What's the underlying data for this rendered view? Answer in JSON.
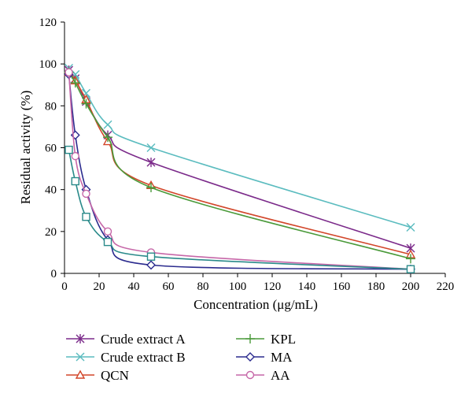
{
  "chart_data": {
    "type": "line",
    "xlabel": "Concentration (μg/mL)",
    "ylabel": "Residual activity (%)",
    "xlim": [
      0,
      220
    ],
    "ylim": [
      0,
      120
    ],
    "xticks": [
      0,
      20,
      40,
      60,
      80,
      100,
      120,
      140,
      160,
      180,
      200,
      220
    ],
    "yticks": [
      0,
      20,
      40,
      60,
      80,
      100,
      120
    ],
    "grid": false,
    "legend_position": "bottom",
    "series": [
      {
        "name": "Crude extract A",
        "color": "#7b2a8a",
        "marker": "asterisk",
        "x": [
          2.5,
          6.25,
          12.5,
          25,
          50,
          200
        ],
        "y": [
          97,
          93,
          82,
          66,
          53,
          12
        ]
      },
      {
        "name": "Crude extract B",
        "color": "#5bbcbf",
        "marker": "x",
        "x": [
          2.5,
          6.25,
          12.5,
          25,
          50,
          200
        ],
        "y": [
          98,
          95,
          86,
          71,
          60,
          22
        ]
      },
      {
        "name": "QCN",
        "color": "#d2462a",
        "marker": "triangle",
        "x": [
          2.5,
          6.25,
          12.5,
          25,
          50,
          200
        ],
        "y": [
          96,
          92,
          83,
          63,
          42,
          9
        ]
      },
      {
        "name": "KPL",
        "color": "#4a9a3a",
        "marker": "plus",
        "x": [
          2.5,
          6.25,
          12.5,
          25,
          50,
          200
        ],
        "y": [
          96,
          91,
          81,
          65,
          41,
          7
        ]
      },
      {
        "name": "MA",
        "color": "#2b2b8e",
        "marker": "diamond",
        "x": [
          2.5,
          6.25,
          12.5,
          25,
          50,
          200
        ],
        "y": [
          95,
          66,
          40,
          16,
          4,
          2
        ]
      },
      {
        "name": "AA",
        "color": "#c667a8",
        "marker": "circle",
        "x": [
          2.5,
          6.25,
          12.5,
          25,
          50,
          200
        ],
        "y": [
          96,
          56,
          38,
          20,
          10,
          2
        ]
      },
      {
        "name": "",
        "color": "#2a8a8a",
        "marker": "square",
        "x": [
          2.5,
          6.25,
          12.5,
          25,
          50,
          200
        ],
        "y": [
          59,
          44,
          27,
          15,
          8,
          2
        ]
      }
    ]
  }
}
